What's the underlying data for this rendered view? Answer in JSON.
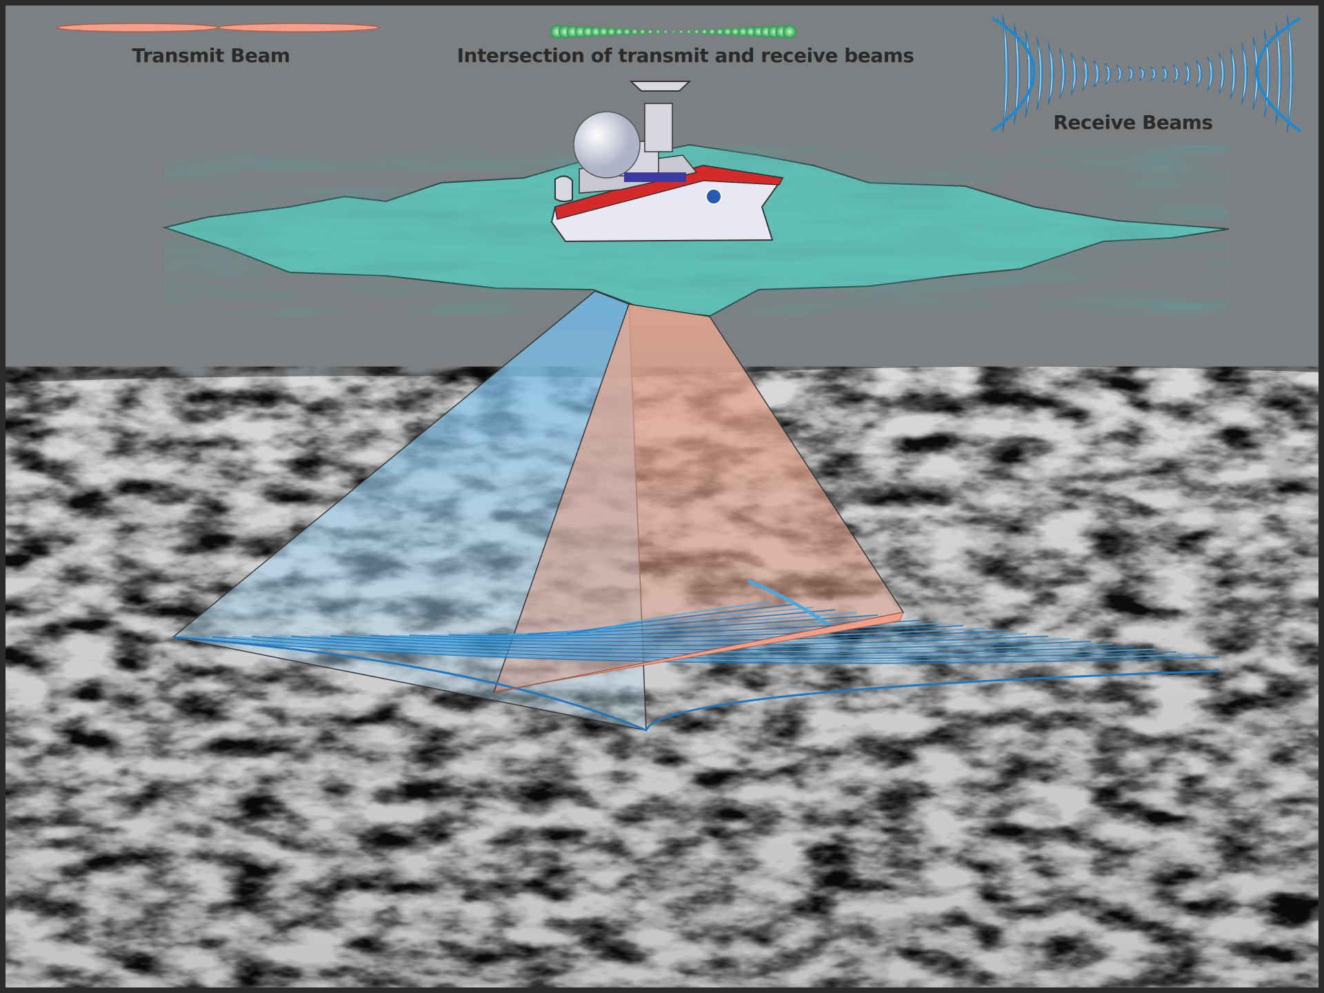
{
  "legend": {
    "transmit_beam": "Transmit Beam",
    "intersection": "Intersection of transmit and receive beams",
    "receive_beams": "Receive Beams"
  }
}
